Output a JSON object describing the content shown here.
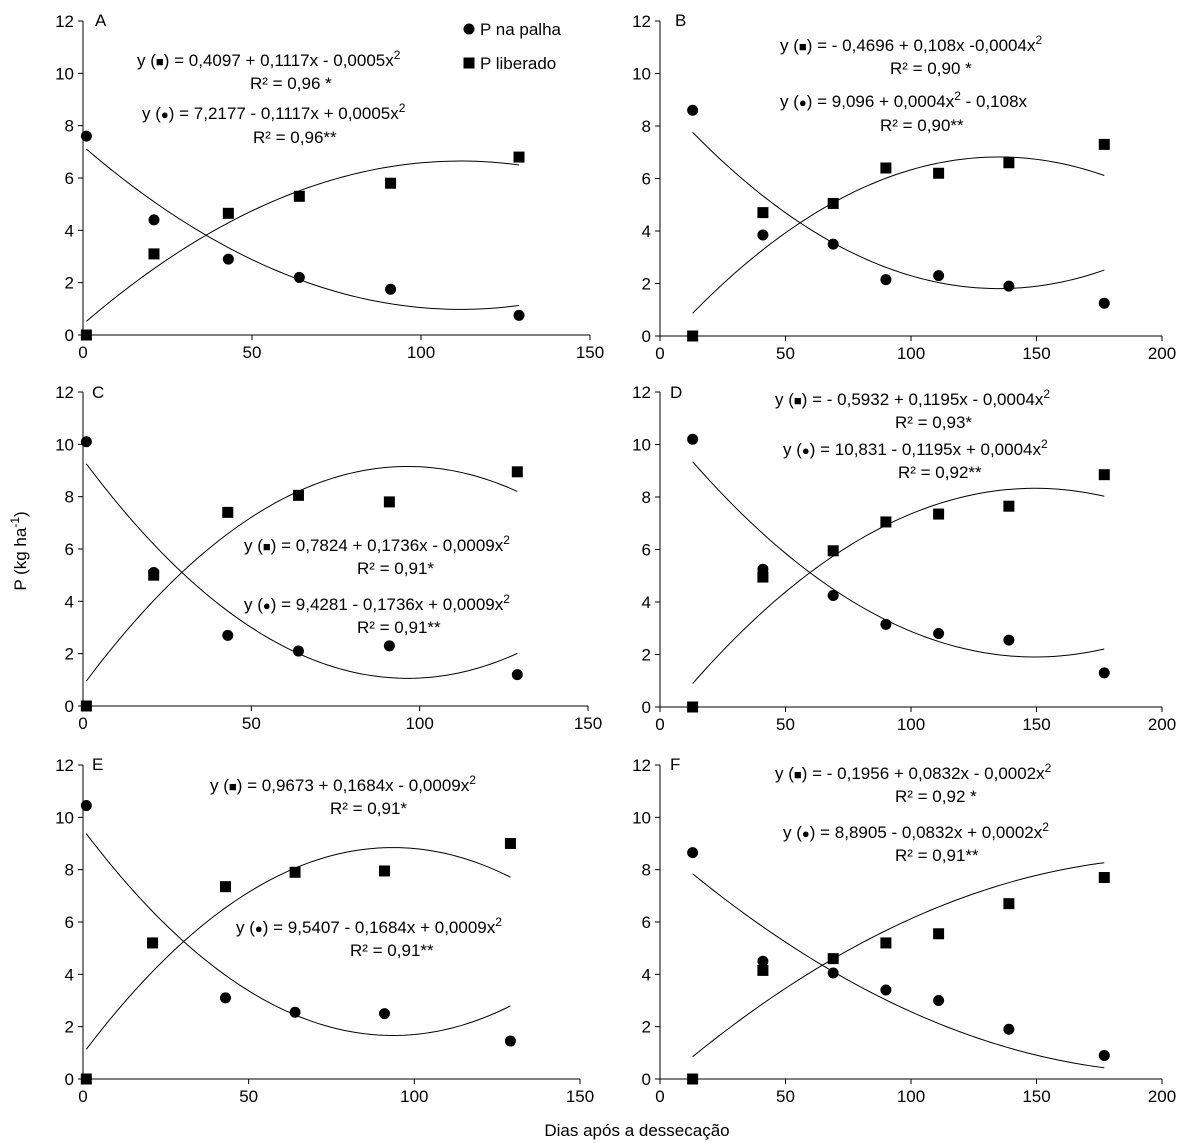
{
  "chart_data": [
    {
      "type": "scatter",
      "panel": "A",
      "xlim": [
        0,
        150
      ],
      "ylim": [
        0,
        12
      ],
      "xticks": [
        0,
        50,
        100,
        150
      ],
      "yticks": [
        0,
        2,
        4,
        6,
        8,
        10,
        12
      ],
      "series": [
        {
          "name": "P na palha",
          "marker": "circle",
          "x": [
            1,
            21,
            43,
            64,
            91,
            129
          ],
          "y": [
            7.6,
            4.4,
            2.9,
            2.2,
            1.75,
            0.75
          ],
          "fit": {
            "a": 7.2177,
            "b": -0.1117,
            "c": 0.0005
          }
        },
        {
          "name": "P liberado",
          "marker": "square",
          "x": [
            1,
            21,
            43,
            64,
            91,
            129
          ],
          "y": [
            0.0,
            3.1,
            4.65,
            5.3,
            5.8,
            6.8
          ],
          "fit": {
            "a": 0.4097,
            "b": 0.1117,
            "c": -0.0005
          }
        }
      ],
      "equations": [
        {
          "prefix": "y (",
          "symbol": "■",
          "body": ") = 0,4097 + 0,1117x  - 0,0005x",
          "r2": "R² = 0,96 *"
        },
        {
          "prefix": "y (",
          "symbol": "●",
          "body": ") = 7,2177 - 0,1117x + 0,0005x",
          "r2": "R² = 0,96**"
        }
      ]
    },
    {
      "type": "scatter",
      "panel": "B",
      "xlim": [
        0,
        200
      ],
      "ylim": [
        0,
        12
      ],
      "xticks": [
        0,
        50,
        100,
        150,
        200
      ],
      "yticks": [
        0,
        2,
        4,
        6,
        8,
        10,
        12
      ],
      "series": [
        {
          "name": "P na palha",
          "marker": "circle",
          "x": [
            13,
            41,
            69,
            90,
            111,
            139,
            177
          ],
          "y": [
            8.6,
            3.85,
            3.5,
            2.15,
            2.3,
            1.9,
            1.25
          ],
          "fit": {
            "a": 9.096,
            "b": -0.108,
            "c": 0.0004
          }
        },
        {
          "name": "P liberado",
          "marker": "square",
          "x": [
            13,
            41,
            69,
            90,
            111,
            139,
            177
          ],
          "y": [
            0.0,
            4.7,
            5.05,
            6.4,
            6.2,
            6.6,
            7.3
          ],
          "fit": {
            "a": -0.4696,
            "b": 0.108,
            "c": -0.0004
          }
        }
      ],
      "equations": [
        {
          "prefix": "y (",
          "symbol": "■",
          "body": ") = - 0,4696 + 0,108x -0,0004x",
          "r2": "R² = 0,90 *"
        },
        {
          "prefix": "y (",
          "symbol": "●",
          "body": ") = 9,096 + 0,0004x",
          "body2": " - 0,108x",
          "r2": "R² = 0,90**"
        }
      ]
    },
    {
      "type": "scatter",
      "panel": "C",
      "xlim": [
        0,
        150
      ],
      "ylim": [
        0,
        12
      ],
      "xticks": [
        0,
        50,
        100,
        150
      ],
      "yticks": [
        0,
        2,
        4,
        6,
        8,
        10,
        12
      ],
      "series": [
        {
          "name": "P na palha",
          "marker": "circle",
          "x": [
            1,
            21,
            43,
            64,
            91,
            129
          ],
          "y": [
            10.1,
            5.1,
            2.7,
            2.1,
            2.3,
            1.2
          ],
          "fit": {
            "a": 9.4281,
            "b": -0.1736,
            "c": 0.0009
          }
        },
        {
          "name": "P liberado",
          "marker": "square",
          "x": [
            1,
            21,
            43,
            64,
            91,
            129
          ],
          "y": [
            0.0,
            5.0,
            7.4,
            8.05,
            7.8,
            8.95
          ],
          "fit": {
            "a": 0.7824,
            "b": 0.1736,
            "c": -0.0009
          }
        }
      ],
      "equations": [
        {
          "prefix": "y (",
          "symbol": "■",
          "body": ") = 0,7824 + 0,1736x  - 0,0009x",
          "r2": "R² = 0,91*"
        },
        {
          "prefix": "y (",
          "symbol": "●",
          "body": ") = 9,4281 - 0,1736x  + 0,0009x",
          "r2": "R² = 0,91**"
        }
      ]
    },
    {
      "type": "scatter",
      "panel": "D",
      "xlim": [
        0,
        200
      ],
      "ylim": [
        0,
        12
      ],
      "xticks": [
        0,
        50,
        100,
        150,
        200
      ],
      "yticks": [
        0,
        2,
        4,
        6,
        8,
        10,
        12
      ],
      "series": [
        {
          "name": "P na palha",
          "marker": "circle",
          "x": [
            13,
            41,
            69,
            90,
            111,
            139,
            177
          ],
          "y": [
            10.2,
            5.25,
            4.25,
            3.15,
            2.8,
            2.55,
            1.3
          ],
          "fit": {
            "a": 10.831,
            "b": -0.1195,
            "c": 0.0004
          }
        },
        {
          "name": "P liberado",
          "marker": "square",
          "x": [
            13,
            41,
            69,
            90,
            111,
            139,
            177
          ],
          "y": [
            0.0,
            4.95,
            5.95,
            7.05,
            7.35,
            7.65,
            8.85
          ],
          "fit": {
            "a": -0.5932,
            "b": 0.1195,
            "c": -0.0004
          }
        }
      ],
      "equations": [
        {
          "prefix": "y (",
          "symbol": "■",
          "body": ") = - 0,5932 + 0,1195x - 0,0004x",
          "r2": "R² = 0,93*"
        },
        {
          "prefix": "y (",
          "symbol": "●",
          "body": ") = 10,831 - 0,1195x  + 0,0004x",
          "r2": "R² = 0,92**"
        }
      ]
    },
    {
      "type": "scatter",
      "panel": "E",
      "xlim": [
        0,
        150
      ],
      "ylim": [
        0,
        12
      ],
      "xticks": [
        0,
        50,
        100,
        150
      ],
      "yticks": [
        0,
        2,
        4,
        6,
        8,
        10,
        12
      ],
      "series": [
        {
          "name": "P na palha",
          "marker": "circle",
          "x": [
            1,
            21,
            43,
            64,
            91,
            129
          ],
          "y": [
            10.45,
            5.2,
            3.1,
            2.55,
            2.5,
            1.45
          ],
          "fit": {
            "a": 9.5407,
            "b": -0.1684,
            "c": 0.0009
          }
        },
        {
          "name": "P liberado",
          "marker": "square",
          "x": [
            1,
            21,
            43,
            64,
            91,
            129
          ],
          "y": [
            0.0,
            5.2,
            7.35,
            7.9,
            7.95,
            9.0
          ],
          "fit": {
            "a": 0.9673,
            "b": 0.1684,
            "c": -0.0009
          }
        }
      ],
      "equations": [
        {
          "prefix": "y (",
          "symbol": "■",
          "body": ") = 0,9673 + 0,1684x  - 0,0009x",
          "r2": "R² = 0,91*"
        },
        {
          "prefix": "y (",
          "symbol": "●",
          "body": ")  =  9,5407 - 0,1684x + 0,0009x",
          "r2": "R² = 0,91**"
        }
      ]
    },
    {
      "type": "scatter",
      "panel": "F",
      "xlim": [
        0,
        200
      ],
      "ylim": [
        0,
        12
      ],
      "xticks": [
        0,
        50,
        100,
        150,
        200
      ],
      "yticks": [
        0,
        2,
        4,
        6,
        8,
        10,
        12
      ],
      "series": [
        {
          "name": "P na palha",
          "marker": "circle",
          "x": [
            13,
            41,
            69,
            90,
            111,
            139,
            177
          ],
          "y": [
            8.65,
            4.5,
            4.05,
            3.4,
            3.0,
            1.9,
            0.9
          ],
          "fit": {
            "a": 8.8905,
            "b": -0.0832,
            "c": 0.0002
          }
        },
        {
          "name": "P liberado",
          "marker": "square",
          "x": [
            13,
            41,
            69,
            90,
            111,
            139,
            177
          ],
          "y": [
            0.0,
            4.15,
            4.6,
            5.2,
            5.55,
            6.7,
            7.7
          ],
          "fit": {
            "a": -0.1956,
            "b": 0.0832,
            "c": -0.0002
          }
        }
      ],
      "equations": [
        {
          "prefix": "y (",
          "symbol": "■",
          "body": ") = - 0,1956 + 0,0832x  - 0,0002x",
          "r2": "R² = 0,92 *"
        },
        {
          "prefix": "y  (",
          "symbol": "●",
          "body": ") = 8,8905 - 0,0832x + 0,0002x",
          "r2": "R² = 0,91**"
        }
      ]
    }
  ],
  "legend": {
    "items": [
      {
        "symbol": "●",
        "label": "P na palha"
      },
      {
        "symbol": "■",
        "label": "P liberado"
      }
    ]
  },
  "axis_titles": {
    "x": "Dias após a dessecação",
    "y_prefix": "P (kg ha",
    "y_sup": "-1",
    "y_suffix": ")"
  },
  "superscript": "2"
}
